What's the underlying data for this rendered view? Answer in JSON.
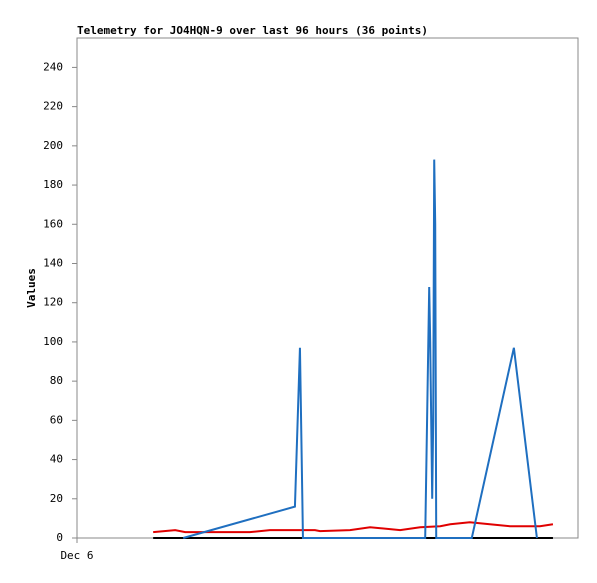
{
  "chart_data": {
    "type": "line",
    "title": "Telemetry for JO4HQN-9 over last 96 hours (36 points)",
    "y_label": "Values",
    "xlim": [
      0,
      100
    ],
    "xticks": [
      {
        "value": 0,
        "label": "Dec 6"
      }
    ],
    "ylim": [
      0,
      255
    ],
    "yticks": [
      0,
      20,
      40,
      60,
      80,
      100,
      120,
      140,
      160,
      180,
      200,
      220,
      240
    ],
    "grid": false,
    "series": [
      {
        "color": "#000000",
        "x": [
          15.2,
          95.0
        ],
        "values": [
          0,
          0
        ]
      },
      {
        "color": "#e00000",
        "x": [
          15.2,
          19.6,
          21.6,
          34.5,
          38.5,
          47.5,
          48.5,
          54.5,
          58.5,
          64.5,
          68.5,
          72.5,
          74.5,
          78.4,
          82.4,
          86.4,
          92.4,
          95.0
        ],
        "values": [
          3,
          4,
          3,
          3,
          4,
          4,
          3.5,
          4,
          5.5,
          4,
          5.5,
          6,
          7,
          8,
          7,
          6,
          6,
          7
        ]
      },
      {
        "color": "#1f6fc0",
        "x": [
          21.2,
          43.5,
          44.5,
          45.1,
          69.5,
          70.3,
          70.5,
          70.9,
          71.1,
          71.3,
          71.5,
          71.7,
          78.8,
          87.2,
          91.8
        ],
        "values": [
          0,
          16,
          97,
          0,
          0,
          128,
          100,
          20,
          60,
          193,
          160,
          0,
          0,
          97,
          0
        ]
      }
    ]
  }
}
